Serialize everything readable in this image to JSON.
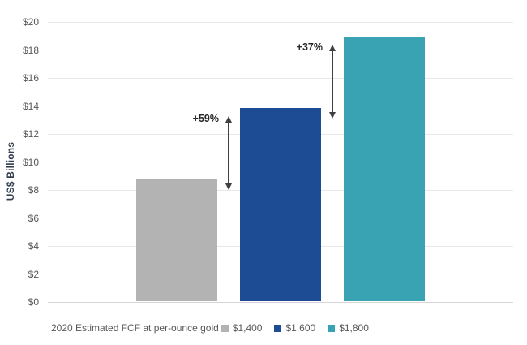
{
  "chart_data": {
    "type": "bar",
    "title": "",
    "xlabel": "",
    "ylabel": "US$ Billions",
    "ylim": [
      0,
      20
    ],
    "grid": true,
    "legend_position": "bottom",
    "legend_series_label": "2020 Estimated FCF at per-ounce gold",
    "yticks": [
      {
        "value": 0,
        "label": "$0"
      },
      {
        "value": 2,
        "label": "$2"
      },
      {
        "value": 4,
        "label": "$4"
      },
      {
        "value": 6,
        "label": "$6"
      },
      {
        "value": 8,
        "label": "$8"
      },
      {
        "value": 10,
        "label": "$10"
      },
      {
        "value": 12,
        "label": "$12"
      },
      {
        "value": 14,
        "label": "$14"
      },
      {
        "value": 16,
        "label": "$16"
      },
      {
        "value": 18,
        "label": "$18"
      },
      {
        "value": 20,
        "label": "$20"
      }
    ],
    "categories": [
      "$1,400",
      "$1,600",
      "$1,800"
    ],
    "bars": [
      {
        "label": "$1,400",
        "value": 8.7,
        "color": "#b3b3b3"
      },
      {
        "label": "$1,600",
        "value": 13.8,
        "color": "#1d4b94"
      },
      {
        "label": "$1,800",
        "value": 18.9,
        "color": "#39a2b3"
      }
    ],
    "annotations": [
      {
        "label": "+59%",
        "from_value": 8.7,
        "to_value": 13.8
      },
      {
        "label": "+37%",
        "from_value": 13.8,
        "to_value": 18.9
      }
    ]
  },
  "colors": {
    "gridline": "#e8e8e8",
    "baseline": "#d6d6d6",
    "tick_text": "#595959",
    "axis_title": "#333f50",
    "annotation_text": "#262626",
    "arrow": "#3f3f3f",
    "background": "#ffffff"
  }
}
